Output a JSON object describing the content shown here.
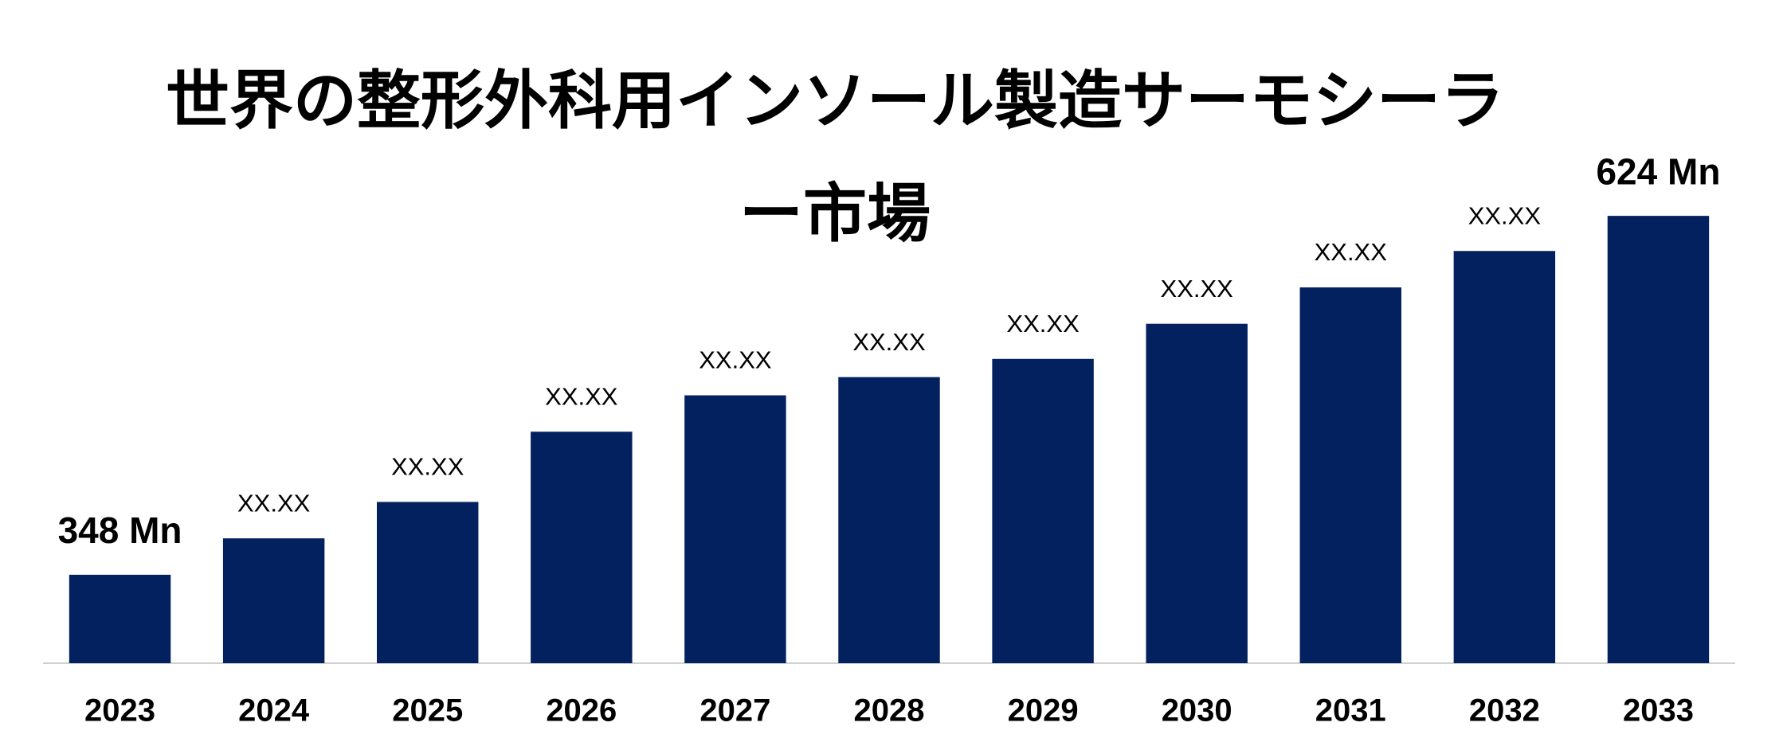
{
  "chart_data": {
    "type": "bar",
    "title": "世界の整形外科用インソール製造サーモシーラー市場",
    "categories": [
      "2023",
      "2024",
      "2025",
      "2026",
      "2027",
      "2028",
      "2029",
      "2030",
      "2031",
      "2032",
      "2033"
    ],
    "values": [
      348,
      376,
      404,
      458,
      486,
      500,
      514,
      541,
      569,
      597,
      624
    ],
    "value_labels": [
      "348 Mn",
      "XX.XX",
      "XX.XX",
      "XX.XX",
      "XX.XX",
      "XX.XX",
      "XX.XX",
      "XX.XX",
      "XX.XX",
      "XX.XX",
      "624 Mn"
    ],
    "color": "#03215e",
    "ylim": [
      280,
      700
    ]
  }
}
